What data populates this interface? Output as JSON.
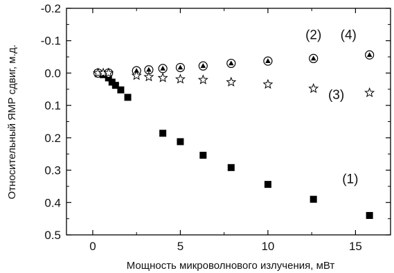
{
  "chart_data": {
    "type": "scatter",
    "title": "",
    "xlabel": "Мощность микроволнового излучения, мВт",
    "ylabel": "Относительный ЯМР сдвиг, м.д.",
    "xlim": [
      -1.5,
      17
    ],
    "ylim": [
      -0.2,
      0.5
    ],
    "y_inverted": true,
    "x_ticks": [
      0,
      5,
      10,
      15
    ],
    "x_tick_labels": [
      "0",
      "5",
      "10",
      "15"
    ],
    "y_ticks": [
      -0.2,
      -0.1,
      0.0,
      0.1,
      0.2,
      0.3,
      0.4,
      0.5
    ],
    "y_tick_labels": [
      "-0.2",
      "-0.1",
      "0.0",
      "0.1",
      "0.2",
      "0.3",
      "0.4",
      "0.5"
    ],
    "grid": false,
    "legend": "none",
    "series": [
      {
        "marker": "square",
        "x": [
          0.3,
          0.6,
          0.9,
          1.1,
          1.3,
          1.6,
          2.0,
          4.0,
          5.0,
          6.3,
          7.9,
          10.0,
          12.6,
          15.8
        ],
        "values": [
          0.0,
          0.005,
          0.015,
          0.028,
          0.038,
          0.052,
          0.075,
          0.186,
          0.212,
          0.254,
          0.292,
          0.344,
          0.39,
          0.44
        ]
      },
      {
        "marker": "circle-triangle",
        "x": [
          0.3,
          0.9,
          2.5,
          3.2,
          4.0,
          5.0,
          6.3,
          7.9,
          10.0,
          12.6,
          15.8
        ],
        "values": [
          0.0,
          0.0,
          -0.007,
          -0.01,
          -0.014,
          -0.017,
          -0.022,
          -0.03,
          -0.037,
          -0.045,
          -0.056
        ]
      },
      {
        "marker": "star",
        "x": [
          0.3,
          0.6,
          0.9,
          2.5,
          3.2,
          4.0,
          5.0,
          6.3,
          7.9,
          10.0,
          12.6,
          15.8
        ],
        "values": [
          0.0,
          0.0,
          0.0,
          0.008,
          0.012,
          0.015,
          0.019,
          0.021,
          0.028,
          0.035,
          0.048,
          0.061
        ]
      }
    ],
    "annotations": [
      {
        "text": "(1)",
        "x": 14.7,
        "y": 0.34
      },
      {
        "text": "(2)",
        "x": 12.6,
        "y": -0.105
      },
      {
        "text": "(4)",
        "x": 14.6,
        "y": -0.105
      },
      {
        "text": "(3)",
        "x": 13.9,
        "y": 0.08
      }
    ]
  }
}
